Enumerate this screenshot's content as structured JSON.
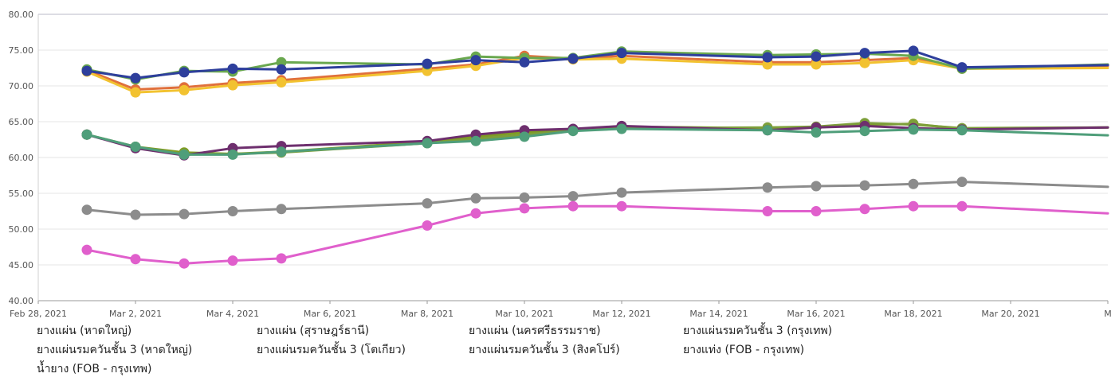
{
  "chart_data": {
    "type": "line",
    "title": "",
    "xlabel": "",
    "ylabel": "",
    "xlim": [
      "2021-02-28",
      "2021-03-22"
    ],
    "ylim": [
      40,
      80
    ],
    "y_ticks": [
      "40.00",
      "45.00",
      "50.00",
      "55.00",
      "60.00",
      "65.00",
      "70.00",
      "75.00",
      "80.00"
    ],
    "x_ticks": [
      "Feb 28, 2021",
      "Mar 2, 2021",
      "Mar 4, 2021",
      "Mar 6, 2021",
      "Mar 8, 2021",
      "Mar 10, 2021",
      "Mar 12, 2021",
      "Mar 14, 2021",
      "Mar 16, 2021",
      "Mar 18, 2021",
      "Mar 20, 2021",
      "M"
    ],
    "grid": "horizontal",
    "legend_position": "bottom",
    "x": [
      "2021-03-01",
      "2021-03-02",
      "2021-03-03",
      "2021-03-04",
      "2021-03-05",
      "2021-03-08",
      "2021-03-09",
      "2021-03-10",
      "2021-03-11",
      "2021-03-12",
      "2021-03-15",
      "2021-03-16",
      "2021-03-17",
      "2021-03-18",
      "2021-03-19",
      "2021-03-22"
    ],
    "series": [
      {
        "name": "ยางแผ่น (หาดใหญ่)",
        "color": "#e0703c",
        "values": [
          72.2,
          69.5,
          69.8,
          70.4,
          70.8,
          72.4,
          73.0,
          74.2,
          73.8,
          74.2,
          73.3,
          73.3,
          73.6,
          73.9,
          72.5,
          72.8
        ]
      },
      {
        "name": "ยางแผ่น (สุราษฎร์ธานี)",
        "color": "#f2c230",
        "values": [
          72.0,
          69.1,
          69.4,
          70.1,
          70.5,
          72.1,
          72.8,
          73.9,
          73.7,
          73.8,
          73.0,
          73.0,
          73.2,
          73.6,
          72.4,
          72.5
        ]
      },
      {
        "name": "ยางแผ่น (นครศรีธรรมราช)",
        "color": "#6aa84f",
        "values": [
          72.3,
          70.9,
          72.1,
          72.0,
          73.3,
          73.0,
          74.1,
          73.9,
          73.9,
          74.8,
          74.3,
          74.4,
          74.5,
          74.2,
          72.4,
          73.0
        ]
      },
      {
        "name": "ยางแผ่นรมควันชั้น 3 (กรุงเทพ)",
        "color": "#2e3f9c",
        "values": [
          72.1,
          71.1,
          71.9,
          72.4,
          72.3,
          73.1,
          73.6,
          73.3,
          73.8,
          74.6,
          74.0,
          74.1,
          74.6,
          74.9,
          72.6,
          72.9
        ]
      },
      {
        "name": "ยางแผ่นรมควันชั้น 3 (หาดใหญ่)",
        "color": "#7f9c22",
        "values": [
          63.2,
          61.5,
          60.7,
          60.5,
          60.8,
          62.2,
          62.9,
          63.5,
          63.9,
          64.3,
          64.1,
          64.2,
          64.6,
          64.7,
          64.0,
          64.2
        ]
      },
      {
        "name": "ยางแผ่นรมควันชั้น 3 (โตเกียว)",
        "color": "#7d9f3a",
        "values": [
          63.2,
          61.4,
          60.5,
          60.5,
          60.7,
          62.0,
          62.6,
          63.2,
          63.8,
          64.1,
          64.2,
          64.3,
          64.8,
          64.6,
          64.1,
          64.2
        ]
      },
      {
        "name": "ยางแผ่นรมควันชั้น 3 (สิงคโปร์)",
        "color": "#6e2f6e",
        "values": [
          63.2,
          61.3,
          60.3,
          61.3,
          61.6,
          62.3,
          63.2,
          63.8,
          64.0,
          64.4,
          63.8,
          64.2,
          64.4,
          64.1,
          63.9,
          64.2
        ]
      },
      {
        "name": "ยางแท่ง (FOB - กรุงเทพ)",
        "color": "#4f9e7a",
        "values": [
          63.2,
          61.5,
          60.4,
          60.4,
          60.8,
          62.0,
          62.3,
          62.9,
          63.7,
          64.0,
          63.8,
          63.5,
          63.7,
          63.9,
          63.8,
          63.1
        ]
      },
      {
        "name": "น้ำยาง (FOB - กรุงเทพ)",
        "color": "#8c8c8c",
        "values": [
          52.7,
          52.0,
          52.1,
          52.5,
          52.8,
          53.6,
          54.3,
          54.4,
          54.6,
          55.1,
          55.8,
          56.0,
          56.1,
          56.3,
          56.6,
          55.9
        ]
      },
      {
        "name": "",
        "color": "#e05fcc",
        "values": [
          47.1,
          45.8,
          45.2,
          45.6,
          45.9,
          50.5,
          52.2,
          52.9,
          53.2,
          53.2,
          52.5,
          52.5,
          52.8,
          53.2,
          53.2,
          52.2
        ]
      }
    ]
  }
}
